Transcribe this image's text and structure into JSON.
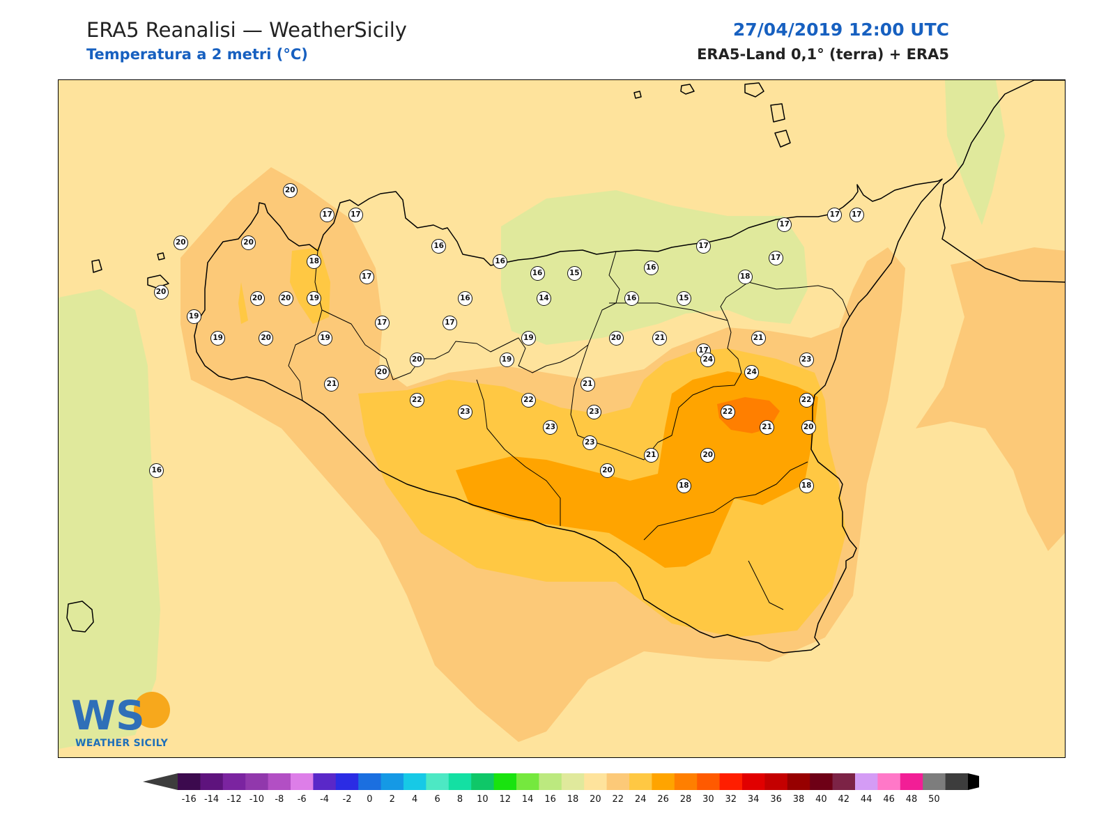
{
  "header": {
    "title": "ERA5 Reanalisi — WeatherSicily",
    "subtitle": "Temperatura a 2 metri (°C)",
    "datetime": "27/04/2019 12:00 UTC",
    "source": "ERA5-Land 0,1° (terra) + ERA5"
  },
  "colors": {
    "title_blue": "#1760c0",
    "bin_14_16": "#e0e99c",
    "bin_16_18": "#fee39c",
    "bin_18_20": "#fcc978",
    "bin_20_22": "#ffc843",
    "bin_22_24": "#ffa400",
    "bin_24_26": "#ff7f00"
  },
  "stations": [
    {
      "lon": 12.56,
      "lat": 38.02,
      "value": "20"
    },
    {
      "lon": 12.47,
      "lat": 37.86,
      "value": "20"
    },
    {
      "lon": 12.87,
      "lat": 38.02,
      "value": "20"
    },
    {
      "lon": 13.06,
      "lat": 38.19,
      "value": "20"
    },
    {
      "lon": 13.23,
      "lat": 38.11,
      "value": "17"
    },
    {
      "lon": 13.36,
      "lat": 38.11,
      "value": "17"
    },
    {
      "lon": 13.74,
      "lat": 38.01,
      "value": "16"
    },
    {
      "lon": 14.02,
      "lat": 37.96,
      "value": "16"
    },
    {
      "lon": 14.19,
      "lat": 37.92,
      "value": "16"
    },
    {
      "lon": 14.36,
      "lat": 37.92,
      "value": "15"
    },
    {
      "lon": 14.71,
      "lat": 37.94,
      "value": "16"
    },
    {
      "lon": 14.95,
      "lat": 38.01,
      "value": "17"
    },
    {
      "lon": 15.32,
      "lat": 38.08,
      "value": "17"
    },
    {
      "lon": 15.55,
      "lat": 38.11,
      "value": "17"
    },
    {
      "lon": 15.65,
      "lat": 38.11,
      "value": "17"
    },
    {
      "lon": 15.28,
      "lat": 37.97,
      "value": "17"
    },
    {
      "lon": 15.14,
      "lat": 37.91,
      "value": "18"
    },
    {
      "lon": 14.86,
      "lat": 37.84,
      "value": "15"
    },
    {
      "lon": 14.62,
      "lat": 37.84,
      "value": "16"
    },
    {
      "lon": 14.22,
      "lat": 37.84,
      "value": "14"
    },
    {
      "lon": 13.86,
      "lat": 37.84,
      "value": "16"
    },
    {
      "lon": 13.41,
      "lat": 37.91,
      "value": "17"
    },
    {
      "lon": 13.17,
      "lat": 37.96,
      "value": "18"
    },
    {
      "lon": 12.91,
      "lat": 37.84,
      "value": "20"
    },
    {
      "lon": 13.04,
      "lat": 37.84,
      "value": "20"
    },
    {
      "lon": 13.17,
      "lat": 37.84,
      "value": "19"
    },
    {
      "lon": 12.62,
      "lat": 37.78,
      "value": "19"
    },
    {
      "lon": 12.73,
      "lat": 37.71,
      "value": "19"
    },
    {
      "lon": 12.95,
      "lat": 37.71,
      "value": "20"
    },
    {
      "lon": 13.22,
      "lat": 37.71,
      "value": "19"
    },
    {
      "lon": 13.48,
      "lat": 37.76,
      "value": "17"
    },
    {
      "lon": 13.79,
      "lat": 37.76,
      "value": "17"
    },
    {
      "lon": 14.15,
      "lat": 37.71,
      "value": "19"
    },
    {
      "lon": 14.55,
      "lat": 37.71,
      "value": "20"
    },
    {
      "lon": 14.75,
      "lat": 37.71,
      "value": "21"
    },
    {
      "lon": 14.95,
      "lat": 37.67,
      "value": "17"
    },
    {
      "lon": 15.2,
      "lat": 37.71,
      "value": "21"
    },
    {
      "lon": 15.42,
      "lat": 37.64,
      "value": "23"
    },
    {
      "lon": 15.17,
      "lat": 37.6,
      "value": "24"
    },
    {
      "lon": 14.97,
      "lat": 37.64,
      "value": "24"
    },
    {
      "lon": 14.42,
      "lat": 37.56,
      "value": "21"
    },
    {
      "lon": 14.05,
      "lat": 37.64,
      "value": "19"
    },
    {
      "lon": 13.64,
      "lat": 37.64,
      "value": "20"
    },
    {
      "lon": 13.48,
      "lat": 37.6,
      "value": "20"
    },
    {
      "lon": 13.25,
      "lat": 37.56,
      "value": "21"
    },
    {
      "lon": 13.64,
      "lat": 37.51,
      "value": "22"
    },
    {
      "lon": 14.15,
      "lat": 37.51,
      "value": "22"
    },
    {
      "lon": 15.42,
      "lat": 37.51,
      "value": "22"
    },
    {
      "lon": 15.06,
      "lat": 37.47,
      "value": "22"
    },
    {
      "lon": 14.45,
      "lat": 37.47,
      "value": "23"
    },
    {
      "lon": 13.86,
      "lat": 37.47,
      "value": "23"
    },
    {
      "lon": 14.25,
      "lat": 37.42,
      "value": "23"
    },
    {
      "lon": 14.43,
      "lat": 37.37,
      "value": "23"
    },
    {
      "lon": 15.24,
      "lat": 37.42,
      "value": "21"
    },
    {
      "lon": 15.43,
      "lat": 37.42,
      "value": "20"
    },
    {
      "lon": 14.71,
      "lat": 37.33,
      "value": "21"
    },
    {
      "lon": 14.97,
      "lat": 37.33,
      "value": "20"
    },
    {
      "lon": 14.51,
      "lat": 37.28,
      "value": "20"
    },
    {
      "lon": 14.86,
      "lat": 37.23,
      "value": "18"
    },
    {
      "lon": 15.42,
      "lat": 37.23,
      "value": "18"
    },
    {
      "lon": 12.45,
      "lat": 37.28,
      "value": "16"
    }
  ],
  "colorbar": {
    "ticks": [
      "-16",
      "-14",
      "-12",
      "-10",
      "-8",
      "-6",
      "-4",
      "-2",
      "0",
      "2",
      "4",
      "6",
      "8",
      "10",
      "12",
      "14",
      "16",
      "18",
      "20",
      "22",
      "24",
      "26",
      "28",
      "30",
      "32",
      "34",
      "36",
      "38",
      "40",
      "42",
      "44",
      "46",
      "48",
      "50"
    ],
    "colors": [
      "#3c0a4e",
      "#5e137d",
      "#7b24a0",
      "#9138ac",
      "#b24fc4",
      "#dd7ee8",
      "#5a28c8",
      "#2b2ce4",
      "#1b6fe0",
      "#1599e5",
      "#17c9e6",
      "#4de8c4",
      "#13e0a3",
      "#0fc768",
      "#19e30f",
      "#75e83e",
      "#bce97f",
      "#e0e99c",
      "#fee39c",
      "#fcc978",
      "#ffc843",
      "#ffa400",
      "#ff7f00",
      "#ff5a00",
      "#ff1e00",
      "#e10000",
      "#c40000",
      "#970000",
      "#6e0016",
      "#7c2346",
      "#d49cf5",
      "#ff78c8",
      "#f21e96",
      "#7d7d7d",
      "#3d3d3d"
    ],
    "under_color": "#3d3d3d",
    "over_color": "#000000"
  },
  "logo": {
    "letters": "WS",
    "wordmark": "WEATHER SICILY"
  }
}
